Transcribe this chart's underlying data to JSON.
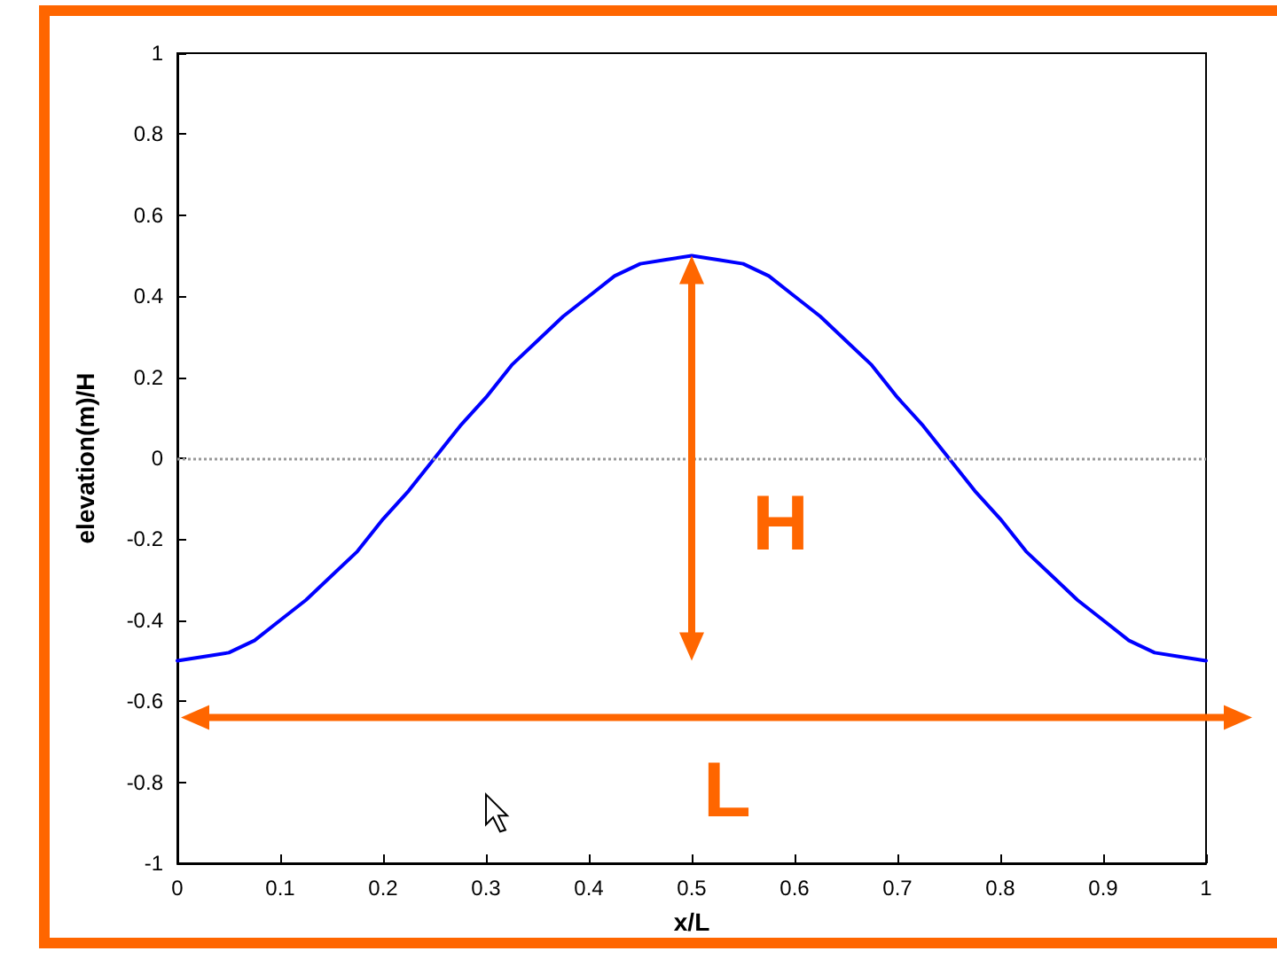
{
  "chart_data": {
    "type": "line",
    "xlabel": "x/L",
    "ylabel": "elevation(m)/H",
    "x": [
      0,
      0.025,
      0.05,
      0.075,
      0.1,
      0.125,
      0.15,
      0.175,
      0.2,
      0.225,
      0.25,
      0.275,
      0.3,
      0.325,
      0.35,
      0.375,
      0.4,
      0.425,
      0.45,
      0.475,
      0.5,
      0.525,
      0.55,
      0.575,
      0.6,
      0.625,
      0.65,
      0.675,
      0.7,
      0.725,
      0.75,
      0.775,
      0.8,
      0.825,
      0.85,
      0.875,
      0.9,
      0.925,
      0.95,
      0.975,
      1
    ],
    "series": [
      {
        "color": "#0000ff",
        "values": [
          -0.5,
          -0.49,
          -0.48,
          -0.45,
          -0.4,
          -0.35,
          -0.29,
          -0.23,
          -0.15,
          -0.08,
          0,
          0.08,
          0.15,
          0.23,
          0.29,
          0.35,
          0.4,
          0.45,
          0.48,
          0.49,
          0.5,
          0.49,
          0.48,
          0.45,
          0.4,
          0.35,
          0.29,
          0.23,
          0.15,
          0.08,
          0,
          -0.08,
          -0.15,
          -0.23,
          -0.29,
          -0.35,
          -0.4,
          -0.45,
          -0.48,
          -0.49,
          -0.5
        ]
      }
    ],
    "xlim": [
      0,
      1
    ],
    "xticks": [
      0,
      0.1,
      0.2,
      0.3,
      0.4,
      0.5,
      0.6,
      0.7,
      0.8,
      0.9,
      1
    ],
    "ylim": [
      -1,
      1
    ],
    "yticks": [
      -1,
      -0.8,
      -0.6,
      -0.4,
      -0.2,
      0,
      0.2,
      0.4,
      0.6,
      0.8,
      1
    ],
    "ref_lines": [
      {
        "axis": "y",
        "value": 0,
        "color": "#999999",
        "line_style": "dotted"
      }
    ],
    "annotations": [
      "H",
      "L"
    ],
    "grid": false,
    "marker": "none",
    "line_style": "solid"
  }
}
